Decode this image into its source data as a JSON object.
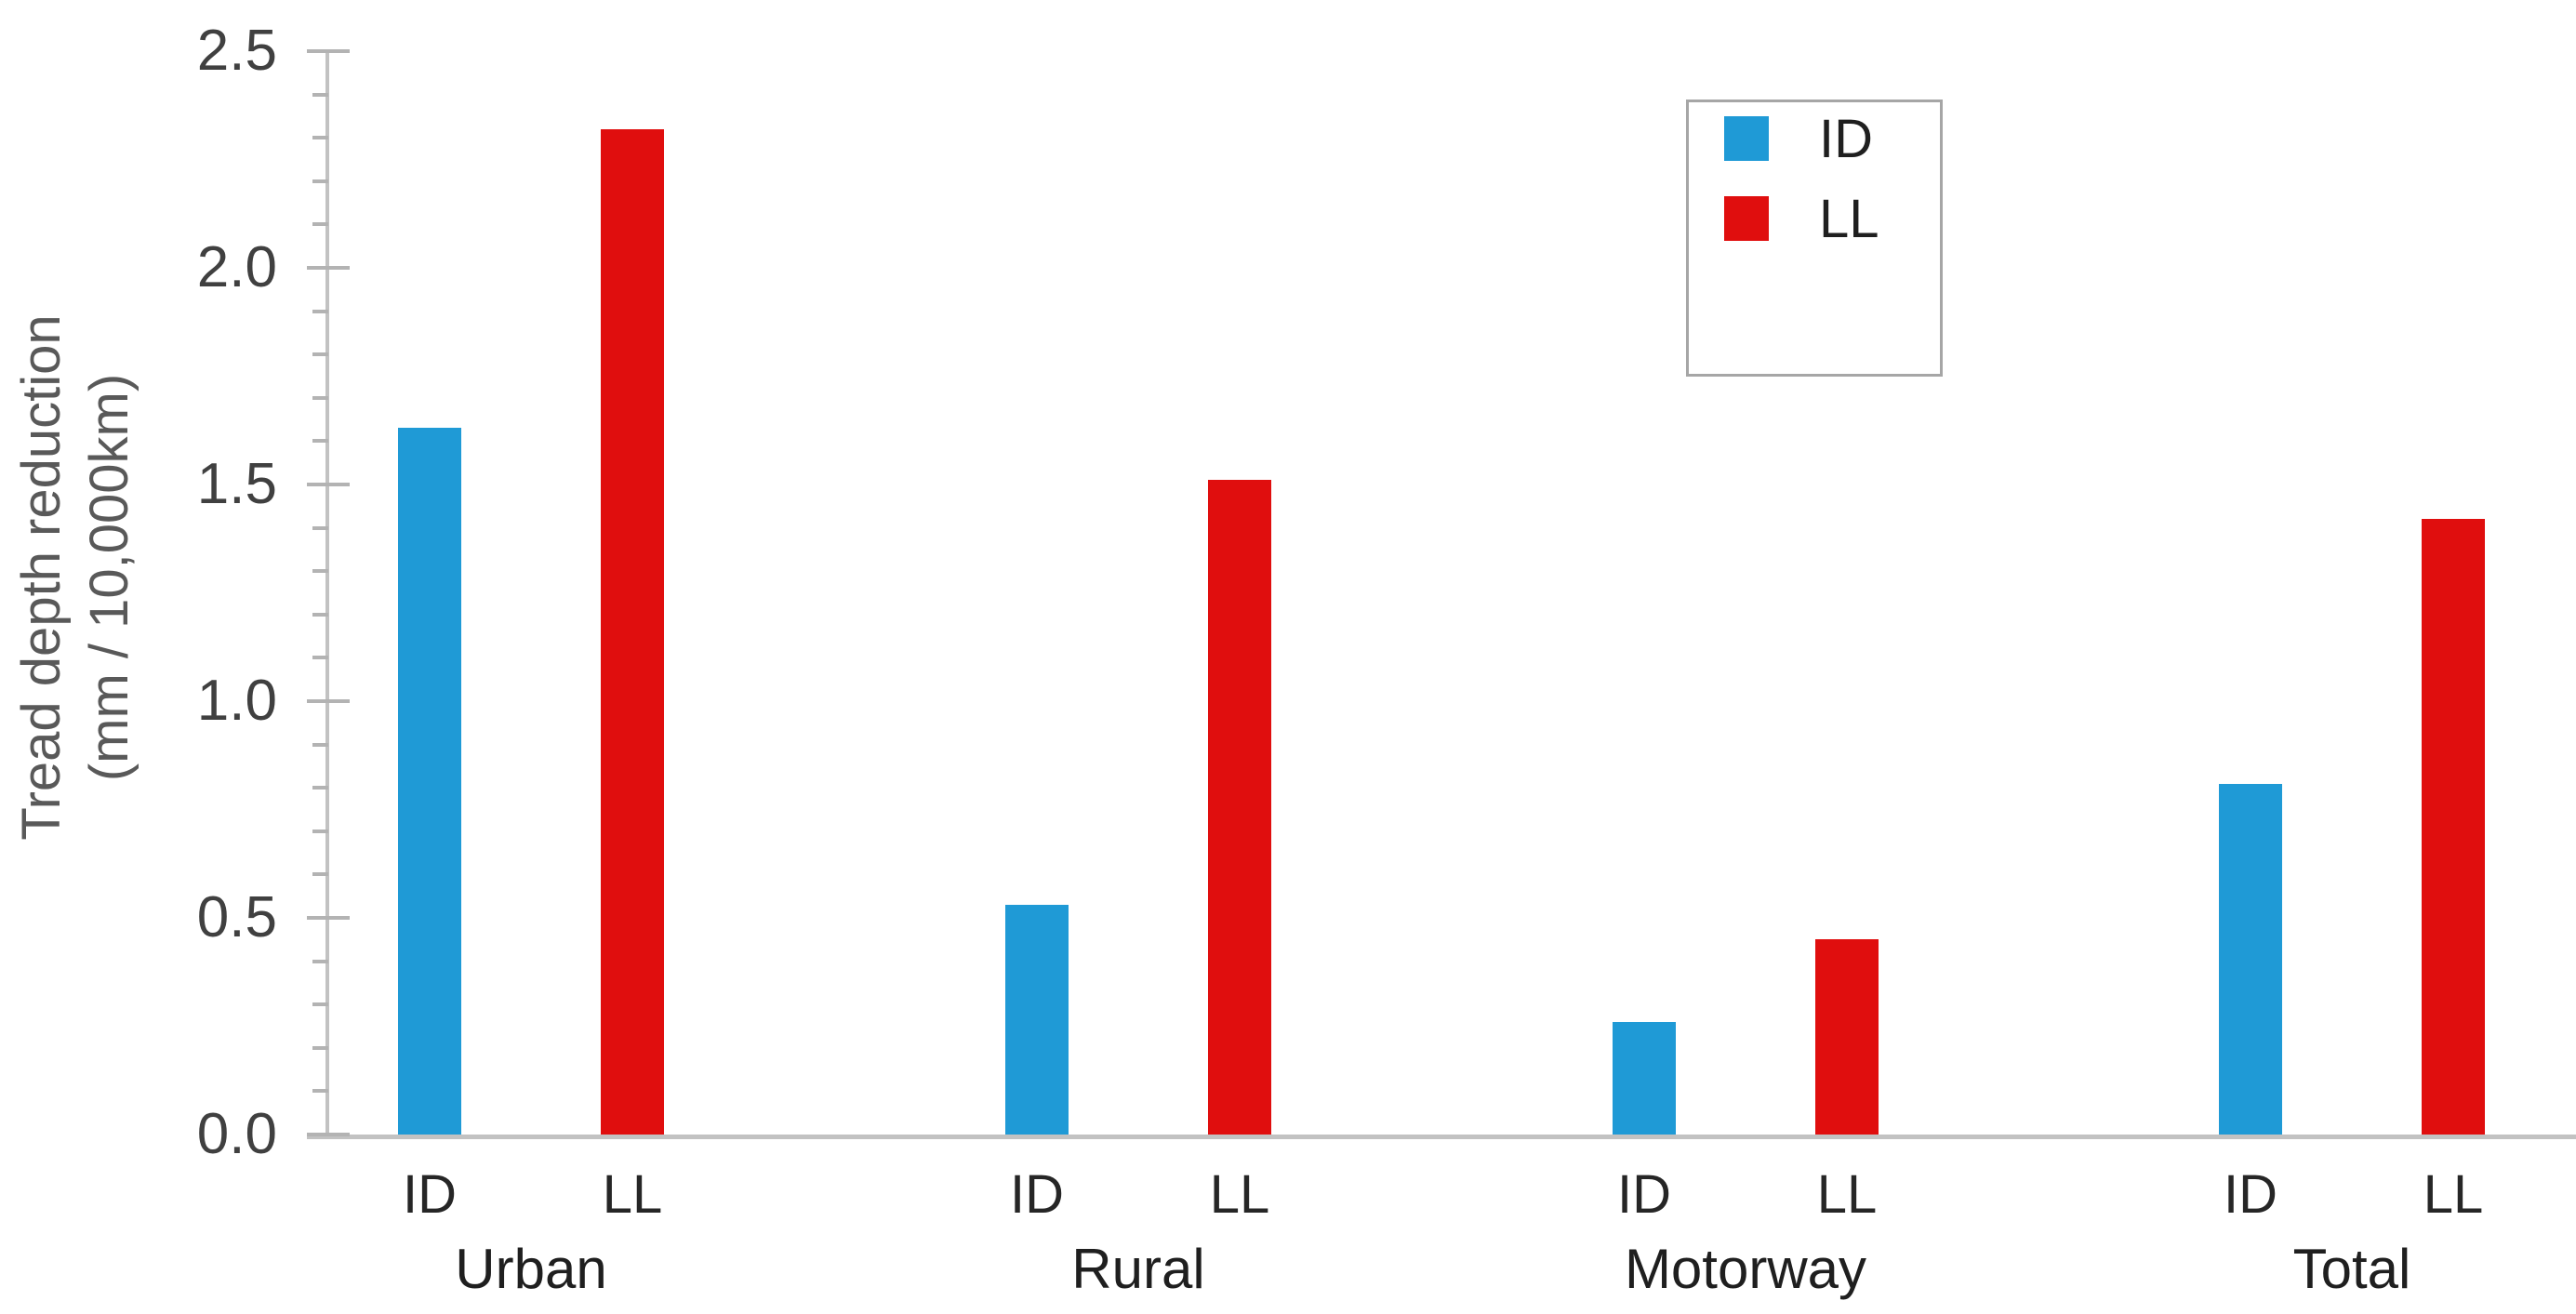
{
  "chart_data": {
    "type": "bar",
    "title": "",
    "ylabel_line1": "Tread depth reduction",
    "ylabel_line2": "(mm / 10,000km)",
    "categories": [
      "Urban",
      "Rural",
      "Motorway",
      "Total"
    ],
    "bar_sublabels": [
      "ID",
      "LL"
    ],
    "series": [
      {
        "name": "ID",
        "color": "#1f9ad6",
        "values": [
          1.63,
          0.53,
          0.26,
          0.81
        ]
      },
      {
        "name": "LL",
        "color": "#e00e0e",
        "values": [
          2.32,
          1.51,
          0.45,
          1.42
        ]
      }
    ],
    "ylim": [
      0,
      2.5
    ],
    "ytick_major_interval": 0.5,
    "ytick_minor_interval": 0.1,
    "ytick_labels": [
      "0.0",
      "0.5",
      "1.0",
      "1.5",
      "2.0",
      "2.5"
    ],
    "grid": false,
    "legend_position": "top-right",
    "legend_entries": [
      "ID",
      "LL"
    ]
  },
  "colors": {
    "id_blue": "#1f9ad6",
    "ll_red": "#e00e0e",
    "axis_gray": "#c2c2c2",
    "tick_gray": "#b3b3b3",
    "tick_label_gray": "#404040",
    "axis_title_gray": "#595959",
    "category_text": "#1f1f1f",
    "legend_border": "#a6a6a6",
    "background": "#ffffff"
  }
}
